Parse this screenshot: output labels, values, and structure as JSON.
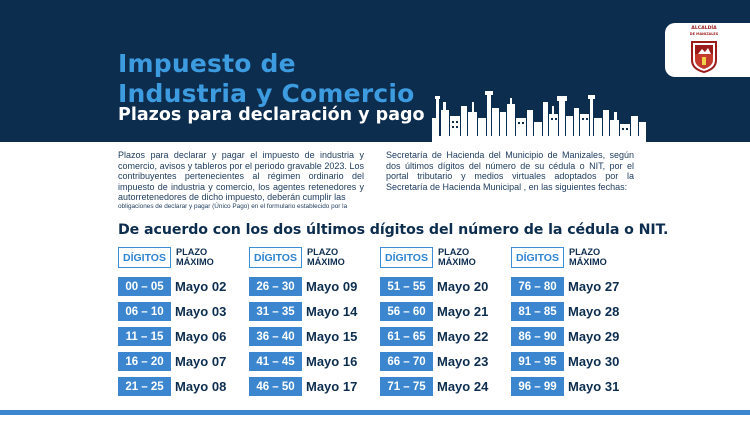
{
  "header": {
    "title_line1": "Impuesto de",
    "title_line2": "Industria y Comercio",
    "subtitle": "Plazos para declaración y pago",
    "logo_text_line1": "ALCALDÍA",
    "logo_text_line2": "DE MANIZALES"
  },
  "intro": {
    "left_text": "Plazos para declarar y pagar el impuesto de industria y comercio, avisos y tableros por el periodo gravable 2023. Los contribuyentes pertenecientes al régimen ordinario del impuesto de industria y comercio, los agentes retenedores y autorretenedores de dicho impuesto, deberán cumplir las",
    "left_small": "obligaciones de declarar y pagar (Único Pago) en el formulario establecido por la",
    "right_text": "Secretaría de Hacienda del Municipio de Manizales, según dos últimos dígitos del número de su cédula o NIT, por el portal tributario y medios virtuales adoptados por la Secretaría de Hacienda Municipal , en las siguientes fechas:"
  },
  "schedule": {
    "heading": "De acuerdo con los dos últimos dígitos del número de la cédula o NIT.",
    "digits_label": "DÍGITOS",
    "plazo_label_line1": "PLAZO",
    "plazo_label_line2": "MÁXIMO",
    "columns": [
      {
        "rows": [
          {
            "range": "00 – 05",
            "date": "Mayo 02"
          },
          {
            "range": "06 – 10",
            "date": "Mayo 03"
          },
          {
            "range": "11 – 15",
            "date": "Mayo 06"
          },
          {
            "range": "16 – 20",
            "date": "Mayo 07"
          },
          {
            "range": "21 – 25",
            "date": "Mayo 08"
          }
        ]
      },
      {
        "rows": [
          {
            "range": "26 – 30",
            "date": "Mayo 09"
          },
          {
            "range": "31 – 35",
            "date": "Mayo 14"
          },
          {
            "range": "36 – 40",
            "date": "Mayo 15"
          },
          {
            "range": "41 – 45",
            "date": "Mayo 16"
          },
          {
            "range": "46 – 50",
            "date": "Mayo 17"
          }
        ]
      },
      {
        "rows": [
          {
            "range": "51 – 55",
            "date": "Mayo 20"
          },
          {
            "range": "56 – 60",
            "date": "Mayo 21"
          },
          {
            "range": "61 – 65",
            "date": "Mayo 22"
          },
          {
            "range": "66 – 70",
            "date": "Mayo 23"
          },
          {
            "range": "71 – 75",
            "date": "Mayo 24"
          }
        ]
      },
      {
        "rows": [
          {
            "range": "76 – 80",
            "date": "Mayo 27"
          },
          {
            "range": "81 – 85",
            "date": "Mayo 28"
          },
          {
            "range": "86 – 90",
            "date": "Mayo 29"
          },
          {
            "range": "91 – 95",
            "date": "Mayo 30"
          },
          {
            "range": "96 – 99",
            "date": "Mayo 31"
          }
        ]
      }
    ]
  },
  "colors": {
    "navy": "#0d2d4f",
    "accent_blue": "#3b86cf",
    "title_blue": "#3d9be0",
    "logo_red": "#9b1b1b"
  }
}
